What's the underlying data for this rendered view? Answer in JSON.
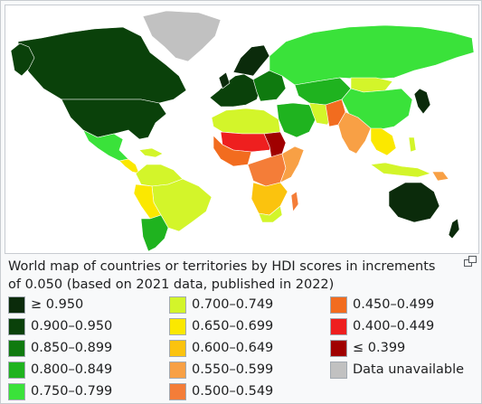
{
  "caption": "World map of countries or territories by HDI scores in increments of 0.050 (based on 2021 data, published in 2022)",
  "magnify_icon": "magnify-clip-icon",
  "legend": [
    {
      "label": "≥ 0.950",
      "color": "#0b2b0b"
    },
    {
      "label": "0.900–0.950",
      "color": "#0a410a"
    },
    {
      "label": "0.850–0.899",
      "color": "#0f7a0f"
    },
    {
      "label": "0.800–0.849",
      "color": "#1fb31f"
    },
    {
      "label": "0.750–0.799",
      "color": "#3ae23a"
    },
    {
      "label": "0.700–0.749",
      "color": "#d3f52a"
    },
    {
      "label": "0.650–0.699",
      "color": "#fbe800"
    },
    {
      "label": "0.600–0.649",
      "color": "#fbc30e"
    },
    {
      "label": "0.550–0.599",
      "color": "#f8a045"
    },
    {
      "label": "0.500–0.549",
      "color": "#f47d38"
    },
    {
      "label": "0.450–0.499",
      "color": "#f26c1f"
    },
    {
      "label": "0.400–0.449",
      "color": "#ee1f1f"
    },
    {
      "label": "≤ 0.399",
      "color": "#a00000"
    },
    {
      "label": "Data unavailable",
      "color": "#c1c1c1"
    }
  ]
}
